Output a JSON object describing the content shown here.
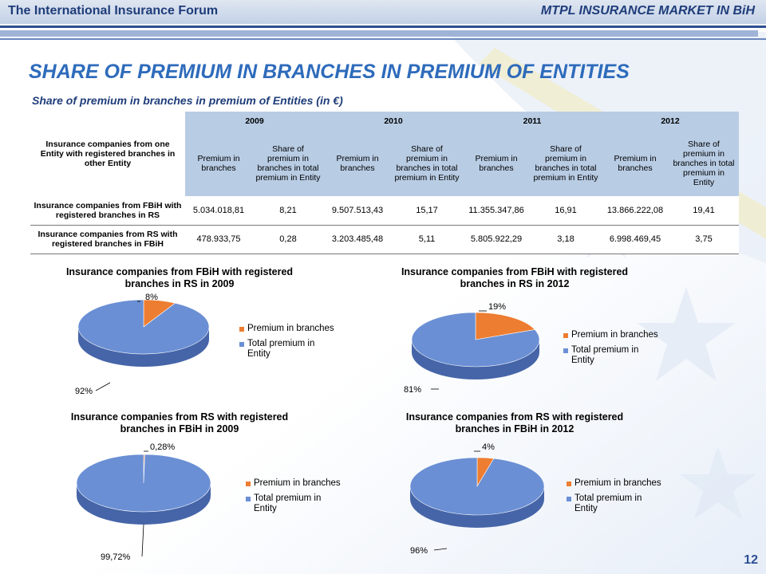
{
  "header": {
    "left": "The International Insurance Forum",
    "right": "MTPL INSURANCE MARKET IN BiH"
  },
  "title": "SHARE OF PREMIUM IN BRANCHES IN PREMIUM OF ENTITIES",
  "subtitle": "Share of premium in branches in premium of Entities (in €)",
  "table": {
    "corner_header": "Insurance companies from one Entity with registered branches in other Entity",
    "years": [
      "2009",
      "2010",
      "2011",
      "2012"
    ],
    "sub_headers": [
      "Premium in branches",
      "Share of premium in branches in total premium in Entity"
    ],
    "rows": [
      {
        "label": "Insurance companies from FBiH with registered branches in RS",
        "values": [
          "5.034.018,81",
          "8,21",
          "9.507.513,43",
          "15,17",
          "11.355.347,86",
          "16,91",
          "13.866.222,08",
          "19,41"
        ]
      },
      {
        "label": "Insurance companies from RS with registered branches in FBiH",
        "values": [
          "478.933,75",
          "0,28",
          "3.203.485,48",
          "5,11",
          "5.805.922,29",
          "3,18",
          "6.998.469,45",
          "3,75"
        ]
      }
    ]
  },
  "colors": {
    "premium": "#ed7d31",
    "total": "#6a8fd4"
  },
  "chart_data": [
    {
      "type": "pie",
      "title": "Insurance companies from FBiH with registered branches in RS in 2009",
      "categories": [
        "Premium in branches",
        "Total premium in Entity"
      ],
      "values": [
        8,
        92
      ],
      "data_labels": [
        "8%",
        "92%"
      ]
    },
    {
      "type": "pie",
      "title": "Insurance companies from FBiH with registered branches in RS in 2012",
      "categories": [
        "Premium in branches",
        "Total premium in Entity"
      ],
      "values": [
        19,
        81
      ],
      "data_labels": [
        "19%",
        "81%"
      ]
    },
    {
      "type": "pie",
      "title": "Insurance companies from RS with registered branches in FBiH in 2009",
      "categories": [
        "Premium in branches",
        "Total premium in Entity"
      ],
      "values": [
        0.28,
        99.72
      ],
      "data_labels": [
        "0,28%",
        "99,72%"
      ]
    },
    {
      "type": "pie",
      "title": "Insurance companies from RS with registered branches in FBiH in 2012",
      "categories": [
        "Premium in branches",
        "Total premium in Entity"
      ],
      "values": [
        4,
        96
      ],
      "data_labels": [
        "4%",
        "96%"
      ]
    }
  ],
  "page_number": "12"
}
